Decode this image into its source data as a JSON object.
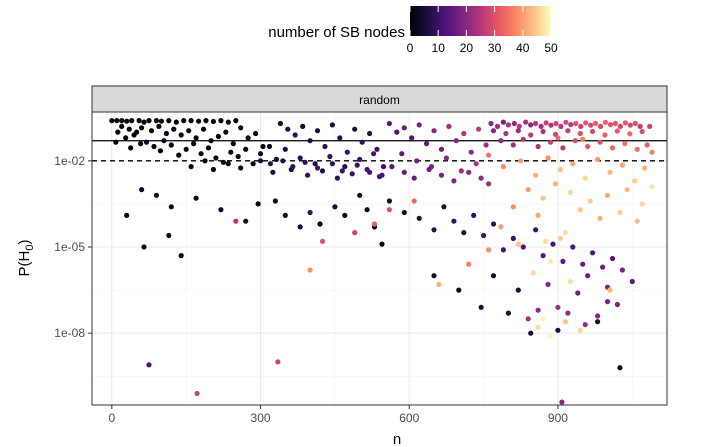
{
  "chart_data": {
    "type": "scatter",
    "title": "",
    "facet_label": "random",
    "xlabel": "n",
    "ylabel_main": "P(H",
    "ylabel_sub": "0",
    "ylabel_close": ")",
    "xlim": [
      -40,
      1120
    ],
    "y_scale": "log10",
    "ylim_log10": [
      -10.5,
      -0.3
    ],
    "x_ticks": [
      0,
      300,
      600,
      900
    ],
    "x_tick_labels": [
      "0",
      "300",
      "600",
      "900"
    ],
    "y_ticks_log10": [
      -2,
      -5,
      -8
    ],
    "y_tick_labels": [
      "1e-02",
      "1e-05",
      "1e-08"
    ],
    "grid": true,
    "reference_lines": [
      {
        "style": "solid",
        "log10_y": -1.3
      },
      {
        "style": "dashed",
        "log10_y": -2
      }
    ],
    "color_legend": {
      "title": "number of SB nodes",
      "placement": "top",
      "min": 0,
      "max": 50,
      "ticks": [
        0,
        10,
        20,
        30,
        40,
        50
      ],
      "tick_labels": [
        "0",
        "10",
        "20",
        "30",
        "40",
        "50"
      ],
      "palette": "magma"
    },
    "points": [
      [
        0,
        -0.6,
        1
      ],
      [
        10,
        -0.6,
        1
      ],
      [
        20,
        -0.6,
        1
      ],
      [
        30,
        -0.62,
        1
      ],
      [
        40,
        -0.6,
        2
      ],
      [
        55,
        -0.6,
        1
      ],
      [
        65,
        -0.65,
        2
      ],
      [
        75,
        -0.6,
        1
      ],
      [
        90,
        -0.6,
        2
      ],
      [
        100,
        -0.62,
        1
      ],
      [
        115,
        -0.6,
        2
      ],
      [
        130,
        -0.65,
        1
      ],
      [
        145,
        -0.6,
        2
      ],
      [
        160,
        -0.6,
        1
      ],
      [
        175,
        -0.62,
        3
      ],
      [
        190,
        -0.6,
        1
      ],
      [
        205,
        -0.63,
        2
      ],
      [
        220,
        -0.6,
        1
      ],
      [
        235,
        -0.65,
        3
      ],
      [
        250,
        -0.6,
        1
      ],
      [
        20,
        -0.8,
        1
      ],
      [
        35,
        -0.9,
        1
      ],
      [
        50,
        -1.0,
        2
      ],
      [
        60,
        -0.85,
        1
      ],
      [
        80,
        -0.95,
        1
      ],
      [
        95,
        -0.8,
        2
      ],
      [
        110,
        -1.05,
        1
      ],
      [
        125,
        -0.9,
        1
      ],
      [
        140,
        -1.1,
        2
      ],
      [
        155,
        -0.95,
        1
      ],
      [
        170,
        -1.2,
        2
      ],
      [
        185,
        -0.9,
        1
      ],
      [
        200,
        -1.3,
        2
      ],
      [
        215,
        -1.15,
        1
      ],
      [
        230,
        -1.0,
        3
      ],
      [
        245,
        -1.4,
        2
      ],
      [
        260,
        -0.85,
        1
      ],
      [
        275,
        -1.2,
        3
      ],
      [
        290,
        -1.05,
        1
      ],
      [
        305,
        -1.5,
        2
      ],
      [
        12,
        -1.0,
        1
      ],
      [
        28,
        -1.2,
        1
      ],
      [
        45,
        -1.1,
        1
      ],
      [
        70,
        -1.35,
        2
      ],
      [
        85,
        -1.5,
        1
      ],
      [
        105,
        -1.3,
        2
      ],
      [
        120,
        -1.45,
        1
      ],
      [
        150,
        -1.6,
        2
      ],
      [
        165,
        -1.4,
        1
      ],
      [
        180,
        -1.75,
        2
      ],
      [
        195,
        -1.55,
        1
      ],
      [
        210,
        -1.9,
        2
      ],
      [
        225,
        -2.05,
        2
      ],
      [
        240,
        -1.7,
        1
      ],
      [
        255,
        -1.85,
        3
      ],
      [
        270,
        -1.6,
        2
      ],
      [
        285,
        -2.1,
        2
      ],
      [
        300,
        -1.75,
        3
      ],
      [
        318,
        -1.5,
        2
      ],
      [
        332,
        -1.95,
        3
      ],
      [
        8,
        -1.35,
        1
      ],
      [
        38,
        -1.55,
        1
      ],
      [
        58,
        -1.4,
        2
      ],
      [
        98,
        -1.65,
        1
      ],
      [
        135,
        -1.8,
        2
      ],
      [
        160,
        -2.2,
        2
      ],
      [
        188,
        -2.0,
        1
      ],
      [
        205,
        -2.3,
        2
      ],
      [
        235,
        -2.1,
        2
      ],
      [
        260,
        -2.25,
        3
      ],
      [
        340,
        -0.7,
        5
      ],
      [
        355,
        -0.9,
        6
      ],
      [
        370,
        -1.1,
        8
      ],
      [
        385,
        -0.8,
        4
      ],
      [
        400,
        -1.3,
        7
      ],
      [
        415,
        -0.95,
        5
      ],
      [
        430,
        -1.5,
        9
      ],
      [
        445,
        -0.75,
        6
      ],
      [
        460,
        -1.2,
        8
      ],
      [
        475,
        -1.7,
        10
      ],
      [
        490,
        -0.9,
        6
      ],
      [
        505,
        -1.35,
        9
      ],
      [
        520,
        -1.05,
        7
      ],
      [
        535,
        -1.6,
        10
      ],
      [
        350,
        -1.6,
        6
      ],
      [
        380,
        -1.9,
        8
      ],
      [
        410,
        -2.1,
        7
      ],
      [
        440,
        -1.85,
        9
      ],
      [
        470,
        -2.2,
        8
      ],
      [
        500,
        -1.95,
        10
      ],
      [
        325,
        -2.4,
        4
      ],
      [
        362,
        -2.3,
        6
      ],
      [
        395,
        -2.5,
        8
      ],
      [
        425,
        -2.35,
        7
      ],
      [
        455,
        -2.6,
        9
      ],
      [
        485,
        -2.45,
        10
      ],
      [
        515,
        -2.3,
        11
      ],
      [
        540,
        -2.55,
        12
      ],
      [
        548,
        -2.2,
        10
      ],
      [
        528,
        -1.75,
        12
      ],
      [
        560,
        -0.7,
        14
      ],
      [
        575,
        -1.0,
        12
      ],
      [
        590,
        -0.85,
        16
      ],
      [
        605,
        -1.2,
        13
      ],
      [
        620,
        -0.75,
        18
      ],
      [
        635,
        -1.4,
        15
      ],
      [
        650,
        -0.95,
        20
      ],
      [
        665,
        -1.6,
        17
      ],
      [
        680,
        -0.8,
        22
      ],
      [
        695,
        -1.3,
        19
      ],
      [
        710,
        -1.05,
        24
      ],
      [
        725,
        -1.7,
        21
      ],
      [
        740,
        -0.9,
        26
      ],
      [
        755,
        -1.45,
        23
      ],
      [
        585,
        -1.75,
        15
      ],
      [
        615,
        -2.0,
        17
      ],
      [
        645,
        -2.2,
        18
      ],
      [
        675,
        -1.9,
        20
      ],
      [
        705,
        -2.35,
        22
      ],
      [
        735,
        -2.1,
        24
      ],
      [
        765,
        -0.7,
        20
      ],
      [
        778,
        -0.8,
        22
      ],
      [
        790,
        -0.65,
        18
      ],
      [
        800,
        -0.75,
        24
      ],
      [
        812,
        -0.7,
        21
      ],
      [
        822,
        -0.8,
        26
      ],
      [
        835,
        -0.65,
        23
      ],
      [
        845,
        -0.75,
        20
      ],
      [
        855,
        -0.7,
        25
      ],
      [
        866,
        -0.8,
        22
      ],
      [
        876,
        -0.68,
        27
      ],
      [
        886,
        -0.76,
        24
      ],
      [
        896,
        -0.7,
        28
      ],
      [
        906,
        -0.8,
        25
      ],
      [
        916,
        -0.66,
        29
      ],
      [
        926,
        -0.74,
        26
      ],
      [
        936,
        -0.7,
        30
      ],
      [
        946,
        -0.8,
        27
      ],
      [
        956,
        -0.68,
        31
      ],
      [
        966,
        -0.76,
        28
      ],
      [
        976,
        -0.7,
        32
      ],
      [
        986,
        -0.8,
        29
      ],
      [
        996,
        -0.66,
        33
      ],
      [
        1006,
        -0.74,
        30
      ],
      [
        1016,
        -0.7,
        31
      ],
      [
        1026,
        -0.8,
        28
      ],
      [
        1036,
        -0.68,
        32
      ],
      [
        1046,
        -0.76,
        29
      ],
      [
        1056,
        -0.7,
        30
      ],
      [
        1066,
        -0.8,
        27
      ],
      [
        770,
        -0.95,
        20
      ],
      [
        795,
        -1.05,
        24
      ],
      [
        820,
        -0.95,
        22
      ],
      [
        845,
        -1.1,
        26
      ],
      [
        870,
        -0.98,
        24
      ],
      [
        895,
        -1.08,
        28
      ],
      [
        920,
        -0.95,
        27
      ],
      [
        945,
        -1.05,
        30
      ],
      [
        970,
        -0.98,
        29
      ],
      [
        995,
        -1.1,
        32
      ],
      [
        1020,
        -0.96,
        31
      ],
      [
        1045,
        -1.06,
        33
      ],
      [
        1070,
        -0.98,
        30
      ],
      [
        1085,
        -0.8,
        28
      ],
      [
        785,
        -1.3,
        21
      ],
      [
        810,
        -1.45,
        23
      ],
      [
        830,
        -1.25,
        25
      ],
      [
        860,
        -1.5,
        24
      ],
      [
        885,
        -1.35,
        27
      ],
      [
        910,
        -1.55,
        26
      ],
      [
        935,
        -1.3,
        29
      ],
      [
        960,
        -1.5,
        31
      ],
      [
        985,
        -1.35,
        30
      ],
      [
        1010,
        -1.55,
        33
      ],
      [
        1035,
        -1.4,
        35
      ],
      [
        1060,
        -1.6,
        34
      ],
      [
        1080,
        -1.45,
        32
      ],
      [
        1090,
        -1.7,
        36
      ],
      [
        900,
        -1.2,
        34
      ],
      [
        950,
        -1.25,
        36
      ],
      [
        760,
        -1.8,
        35
      ],
      [
        790,
        -2.2,
        38
      ],
      [
        825,
        -2.0,
        40
      ],
      [
        855,
        -2.5,
        42
      ],
      [
        880,
        -1.9,
        38
      ],
      [
        905,
        -2.3,
        44
      ],
      [
        930,
        -2.1,
        41
      ],
      [
        955,
        -2.6,
        46
      ],
      [
        980,
        -1.95,
        39
      ],
      [
        1005,
        -2.4,
        43
      ],
      [
        1030,
        -2.15,
        40
      ],
      [
        1055,
        -2.7,
        45
      ],
      [
        1075,
        -2.25,
        42
      ],
      [
        1090,
        -2.9,
        47
      ],
      [
        840,
        -3.0,
        40
      ],
      [
        870,
        -3.3,
        44
      ],
      [
        895,
        -2.8,
        42
      ],
      [
        925,
        -3.1,
        46
      ],
      [
        965,
        -3.4,
        45
      ],
      [
        1000,
        -3.2,
        41
      ],
      [
        1040,
        -3.0,
        43
      ],
      [
        1070,
        -3.5,
        46
      ],
      [
        810,
        -3.6,
        38
      ],
      [
        860,
        -3.9,
        41
      ],
      [
        945,
        -3.7,
        44
      ],
      [
        985,
        -4.0,
        42
      ],
      [
        1025,
        -3.8,
        45
      ],
      [
        1060,
        -4.1,
        43
      ],
      [
        915,
        -4.5,
        47
      ],
      [
        875,
        -4.8,
        46
      ],
      [
        300,
        -2.0,
        6
      ],
      [
        320,
        -2.1,
        8
      ],
      [
        345,
        -2.0,
        7
      ],
      [
        365,
        -2.2,
        9
      ],
      [
        390,
        -2.05,
        8
      ],
      [
        415,
        -2.25,
        10
      ],
      [
        445,
        -2.1,
        9
      ],
      [
        465,
        -2.35,
        11
      ],
      [
        495,
        -2.15,
        10
      ],
      [
        520,
        -2.4,
        12
      ],
      [
        545,
        -2.5,
        13
      ],
      [
        565,
        -2.2,
        14
      ],
      [
        590,
        -2.4,
        15
      ],
      [
        610,
        -2.6,
        16
      ],
      [
        640,
        -2.3,
        17
      ],
      [
        665,
        -2.5,
        18
      ],
      [
        690,
        -2.7,
        19
      ],
      [
        720,
        -2.4,
        20
      ],
      [
        745,
        -2.6,
        21
      ],
      [
        760,
        -2.8,
        22
      ],
      [
        60,
        -3.0,
        4
      ],
      [
        90,
        -3.2,
        2
      ],
      [
        120,
        -3.6,
        3
      ],
      [
        30,
        -3.9,
        2
      ],
      [
        65,
        -5.0,
        4
      ],
      [
        115,
        -4.6,
        3
      ],
      [
        140,
        -5.3,
        2
      ],
      [
        170,
        -3.3,
        4
      ],
      [
        220,
        -3.7,
        3
      ],
      [
        250,
        -4.1,
        25
      ],
      [
        270,
        -4.1,
        4
      ],
      [
        295,
        -3.5,
        2
      ],
      [
        330,
        -3.4,
        3
      ],
      [
        350,
        -3.9,
        4
      ],
      [
        380,
        -4.3,
        6
      ],
      [
        400,
        -3.8,
        8
      ],
      [
        420,
        -4.2,
        2
      ],
      [
        450,
        -3.6,
        5
      ],
      [
        470,
        -3.9,
        3
      ],
      [
        490,
        -4.5,
        28
      ],
      [
        500,
        -3.2,
        4
      ],
      [
        515,
        -3.7,
        3
      ],
      [
        530,
        -4.3,
        2
      ],
      [
        545,
        -4.9,
        2
      ],
      [
        560,
        -3.4,
        5
      ],
      [
        590,
        -3.8,
        4
      ],
      [
        620,
        -4.0,
        6
      ],
      [
        650,
        -4.4,
        8
      ],
      [
        670,
        -3.6,
        5
      ],
      [
        690,
        -4.1,
        10
      ],
      [
        710,
        -4.5,
        7
      ],
      [
        730,
        -3.9,
        9
      ],
      [
        750,
        -4.6,
        11
      ],
      [
        770,
        -4.2,
        8
      ],
      [
        790,
        -5.1,
        12
      ],
      [
        810,
        -4.7,
        9
      ],
      [
        830,
        -5.0,
        13
      ],
      [
        855,
        -4.4,
        10
      ],
      [
        870,
        -5.3,
        14
      ],
      [
        890,
        -4.9,
        11
      ],
      [
        910,
        -5.5,
        15
      ],
      [
        930,
        -5.0,
        12
      ],
      [
        950,
        -5.6,
        16
      ],
      [
        970,
        -5.2,
        13
      ],
      [
        990,
        -5.7,
        17
      ],
      [
        1010,
        -5.4,
        14
      ],
      [
        1030,
        -5.8,
        18
      ],
      [
        1050,
        -6.2,
        15
      ],
      [
        1000,
        -6.4,
        19
      ],
      [
        960,
        -6.0,
        16
      ],
      [
        880,
        -6.3,
        20
      ],
      [
        940,
        -6.6,
        17
      ],
      [
        1000,
        -6.9,
        18
      ],
      [
        1020,
        -7.0,
        19
      ],
      [
        860,
        -7.2,
        21
      ],
      [
        900,
        -7.1,
        22
      ],
      [
        980,
        -7.4,
        20
      ],
      [
        840,
        -7.5,
        23
      ],
      [
        920,
        -7.3,
        21
      ],
      [
        955,
        -7.7,
        22
      ],
      [
        400,
        -5.8,
        38
      ],
      [
        425,
        -4.8,
        30
      ],
      [
        530,
        -4.2,
        32
      ],
      [
        560,
        -3.7,
        30
      ],
      [
        610,
        -3.4,
        34
      ],
      [
        660,
        -6.3,
        42
      ],
      [
        720,
        -5.6,
        36
      ],
      [
        760,
        -5.1,
        38
      ],
      [
        785,
        -4.3,
        40
      ],
      [
        820,
        -4.9,
        44
      ],
      [
        850,
        -5.9,
        46
      ],
      [
        885,
        -5.5,
        48
      ],
      [
        905,
        -4.7,
        45
      ],
      [
        925,
        -6.2,
        47
      ],
      [
        870,
        -7.5,
        49
      ],
      [
        860,
        -7.8,
        47
      ],
      [
        885,
        -8.1,
        49
      ],
      [
        915,
        -7.6,
        44
      ],
      [
        945,
        -7.9,
        46
      ],
      [
        1005,
        -6.5,
        43
      ],
      [
        770,
        -6.0,
        5
      ],
      [
        820,
        -6.5,
        6
      ],
      [
        650,
        -6.0,
        4
      ],
      [
        700,
        -6.5,
        3
      ],
      [
        745,
        -7.1,
        5
      ],
      [
        800,
        -7.3,
        6
      ],
      [
        845,
        -8.0,
        4
      ],
      [
        900,
        -7.9,
        5
      ],
      [
        980,
        -7.6,
        6
      ],
      [
        1025,
        -9.2,
        2
      ],
      [
        75,
        -9.1,
        12
      ],
      [
        172,
        -10.1,
        28
      ],
      [
        335,
        -9.0,
        28
      ],
      [
        908,
        -10.4,
        20
      ]
    ]
  }
}
